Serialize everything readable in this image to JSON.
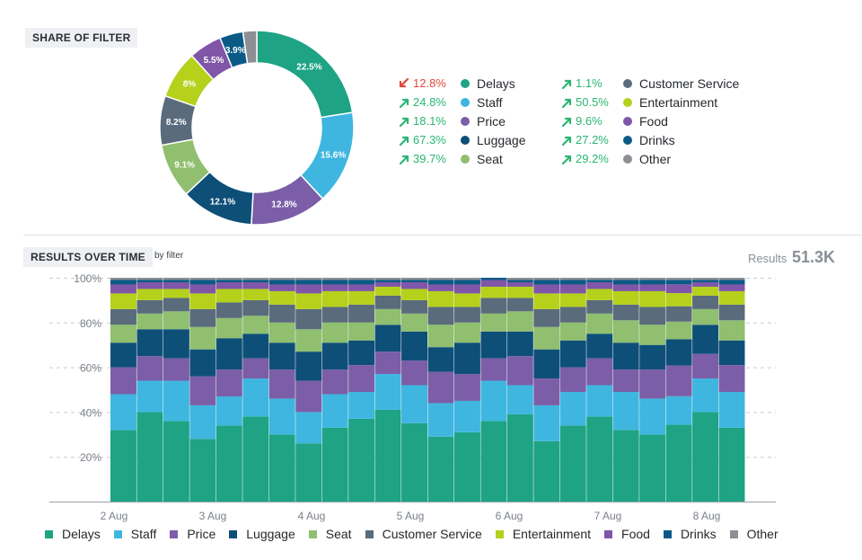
{
  "share_section": {
    "label": "SHARE OF FILTER"
  },
  "time_section": {
    "label": "RESULTS OVER TIME",
    "by_filter": "by filter"
  },
  "results_total": {
    "label": "Results",
    "value": "51.3K"
  },
  "colors": {
    "Delays": "#1ea384",
    "Staff": "#3fb6e0",
    "Price": "#7b5ea7",
    "Luggage": "#0e4f78",
    "Seat": "#8fbf6f",
    "Customer Service": "#5a6b7c",
    "Entertainment": "#b5d11b",
    "Food": "#7f56a8",
    "Drinks": "#0b5a86",
    "Other": "#8c8f93"
  },
  "legend_left": [
    {
      "name": "Delays",
      "change": "12.8%",
      "direction": "down"
    },
    {
      "name": "Staff",
      "change": "24.8%",
      "direction": "up"
    },
    {
      "name": "Price",
      "change": "18.1%",
      "direction": "up"
    },
    {
      "name": "Luggage",
      "change": "67.3%",
      "direction": "up"
    },
    {
      "name": "Seat",
      "change": "39.7%",
      "direction": "up"
    }
  ],
  "legend_right": [
    {
      "name": "Customer Service",
      "change": "1.1%",
      "direction": "up"
    },
    {
      "name": "Entertainment",
      "change": "50.5%",
      "direction": "up"
    },
    {
      "name": "Food",
      "change": "9.6%",
      "direction": "up"
    },
    {
      "name": "Drinks",
      "change": "27.2%",
      "direction": "up"
    },
    {
      "name": "Other",
      "change": "29.2%",
      "direction": "up"
    }
  ],
  "chart_data": [
    {
      "type": "pie",
      "title": "",
      "donut": true,
      "slices": [
        {
          "name": "Delays",
          "value": 22.5,
          "label": "22.5%"
        },
        {
          "name": "Staff",
          "value": 15.6,
          "label": "15.6%"
        },
        {
          "name": "Price",
          "value": 12.8,
          "label": "12.8%"
        },
        {
          "name": "Luggage",
          "value": 12.1,
          "label": "12.1%"
        },
        {
          "name": "Seat",
          "value": 9.1,
          "label": "9.1%"
        },
        {
          "name": "Customer Service",
          "value": 8.2,
          "label": "8.2%"
        },
        {
          "name": "Entertainment",
          "value": 8.0,
          "label": "8%"
        },
        {
          "name": "Food",
          "value": 5.5,
          "label": "5.5%"
        },
        {
          "name": "Drinks",
          "value": 3.9,
          "label": "3.9%"
        },
        {
          "name": "Other",
          "value": 2.3,
          "label": ""
        }
      ]
    },
    {
      "type": "bar",
      "stacked": "percent",
      "title": "",
      "xlabel": "",
      "ylabel": "",
      "x_ticks": [
        "2 Aug",
        "3 Aug",
        "4 Aug",
        "5 Aug",
        "6 Aug",
        "7 Aug",
        "8 Aug"
      ],
      "y_ticks": [
        "20%",
        "40%",
        "60%",
        "80%",
        "100%"
      ],
      "ylim": [
        0,
        100
      ],
      "grid": true,
      "legend": "bottom",
      "series": [
        {
          "name": "Delays",
          "values": [
            32,
            40,
            36,
            28,
            34,
            38,
            30,
            26,
            33,
            37,
            41,
            35,
            29,
            31,
            36,
            39,
            27,
            34,
            38,
            32,
            30,
            35,
            40,
            33
          ]
        },
        {
          "name": "Staff",
          "values": [
            16,
            14,
            18,
            15,
            13,
            17,
            16,
            14,
            15,
            12,
            16,
            17,
            15,
            14,
            18,
            13,
            16,
            15,
            14,
            17,
            16,
            13,
            15,
            16
          ]
        },
        {
          "name": "Price",
          "values": [
            12,
            11,
            10,
            13,
            12,
            9,
            13,
            14,
            11,
            12,
            10,
            11,
            14,
            12,
            10,
            13,
            12,
            11,
            12,
            10,
            13,
            14,
            11,
            12
          ]
        },
        {
          "name": "Luggage",
          "values": [
            11,
            12,
            13,
            12,
            14,
            11,
            12,
            13,
            12,
            11,
            12,
            13,
            11,
            14,
            12,
            11,
            13,
            12,
            11,
            12,
            11,
            12,
            13,
            11
          ]
        },
        {
          "name": "Seat",
          "values": [
            8,
            7,
            8,
            10,
            9,
            8,
            9,
            10,
            9,
            8,
            7,
            8,
            10,
            9,
            8,
            9,
            10,
            8,
            9,
            10,
            9,
            8,
            7,
            9
          ]
        },
        {
          "name": "Customer Service",
          "values": [
            7,
            6,
            6,
            8,
            7,
            7,
            8,
            9,
            7,
            8,
            6,
            6,
            8,
            7,
            7,
            6,
            8,
            7,
            6,
            7,
            8,
            7,
            6,
            7
          ]
        },
        {
          "name": "Entertainment",
          "values": [
            7,
            5,
            4,
            7,
            6,
            5,
            6,
            7,
            7,
            6,
            4,
            5,
            7,
            6,
            5,
            5,
            7,
            6,
            5,
            6,
            7,
            6,
            4,
            6
          ]
        },
        {
          "name": "Food",
          "values": [
            4,
            3,
            3,
            4,
            3,
            3,
            3,
            4,
            3,
            3,
            2,
            3,
            3,
            4,
            3,
            2,
            4,
            4,
            3,
            3,
            3,
            4,
            2,
            3
          ]
        },
        {
          "name": "Drinks",
          "values": [
            2,
            1,
            1,
            2,
            1,
            1,
            2,
            2,
            2,
            2,
            1,
            1,
            2,
            2,
            1,
            1,
            2,
            2,
            1,
            2,
            2,
            2,
            1,
            2
          ]
        },
        {
          "name": "Other",
          "values": [
            1,
            1,
            1,
            1,
            1,
            1,
            1,
            1,
            1,
            1,
            1,
            1,
            1,
            1,
            0,
            1,
            1,
            1,
            1,
            1,
            1,
            1,
            1,
            1
          ]
        }
      ]
    }
  ]
}
